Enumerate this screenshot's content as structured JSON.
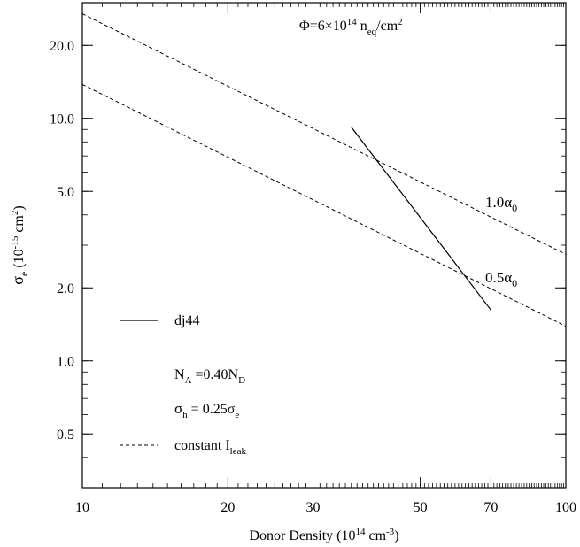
{
  "chart_data": {
    "type": "line",
    "xlabel": {
      "main": "Donor Density (10",
      "sup1": "14",
      "mid": " cm",
      "sup2": "-3",
      "end": ")"
    },
    "ylabel": {
      "sym": "σ",
      "sub": "e",
      "mid": " (10",
      "sup1": "-15",
      "mid2": " cm",
      "sup2": "2",
      "end": ")"
    },
    "xscale": "log",
    "yscale": "log",
    "xlim": [
      10,
      100
    ],
    "ylim": [
      0.3,
      30
    ],
    "x_ticks": [
      10,
      20,
      30,
      50,
      70,
      100
    ],
    "x_tick_labels": [
      "10",
      "20",
      "30",
      "50",
      "70",
      "100"
    ],
    "y_ticks": [
      0.5,
      1.0,
      2.0,
      5.0,
      10.0,
      20.0
    ],
    "y_tick_labels": [
      "0.5",
      "1.0",
      "2.0",
      "5.0",
      "10.0",
      "20.0"
    ],
    "grid": false,
    "series": [
      {
        "name": "dj44",
        "style": "solid",
        "x": [
          36,
          70
        ],
        "y": [
          9.2,
          1.62
        ]
      },
      {
        "style": "dashed",
        "x": [
          10,
          100
        ],
        "y": [
          27,
          2.75
        ]
      },
      {
        "style": "dashed",
        "x": [
          10,
          100
        ],
        "y": [
          13.8,
          1.39
        ]
      }
    ],
    "annotations": {
      "fluence": {
        "pre": "Φ=6×10",
        "sup": "14",
        "mid": " n",
        "sub": "eq",
        "end": "/cm",
        "sup2": "2"
      },
      "alpha_1": {
        "pre": "1.0α",
        "sub": "0"
      },
      "alpha_05": {
        "pre": "0.5α",
        "sub": "0"
      }
    },
    "legend": {
      "position": "bottom-left",
      "entries": [
        {
          "style": "solid",
          "label": "dj44"
        },
        {
          "style": "none",
          "pre": "N",
          "sub": "A",
          "mid": " =0.40N",
          "sub2": "D"
        },
        {
          "style": "none",
          "pre": "σ",
          "sub": "h",
          "mid": " = 0.25σ",
          "sub2": "e"
        },
        {
          "style": "dashed",
          "pre": "constant I",
          "sub": "leak"
        }
      ]
    }
  }
}
